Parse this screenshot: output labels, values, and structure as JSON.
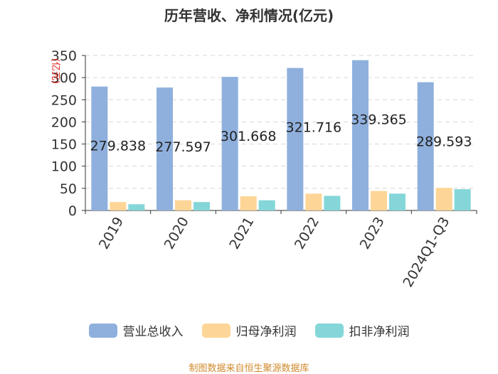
{
  "title": "历年营收、净利情况(亿元)",
  "source": "制图数据来自恒生聚源数据库",
  "colors": {
    "revenue": "#8fb0dd",
    "parent_profit": "#fdd596",
    "deducted_profit": "#84d6d8"
  },
  "chart_data": {
    "type": "bar",
    "title": "历年营收、净利情况(亿元)",
    "ylabel": "(亿元)",
    "ylim": [
      0,
      350
    ],
    "yticks": [
      0,
      50,
      100,
      150,
      200,
      250,
      300,
      350
    ],
    "categories": [
      "2019",
      "2020",
      "2021",
      "2022",
      "2023",
      "2024Q1-Q3"
    ],
    "grid": true,
    "legend_position": "bottom",
    "series": [
      {
        "name": "营业总收入",
        "key": "revenue",
        "values": [
          279.838,
          277.597,
          301.668,
          321.716,
          339.365,
          289.593
        ],
        "labels": [
          "279.838",
          "277.597",
          "301.668",
          "321.716",
          "339.365",
          "289.593"
        ]
      },
      {
        "name": "归母净利润",
        "key": "parent_profit",
        "values": [
          19,
          23,
          32,
          38,
          44,
          51
        ]
      },
      {
        "name": "扣非净利润",
        "key": "deducted_profit",
        "values": [
          14,
          19,
          23,
          33,
          38,
          48
        ]
      }
    ]
  }
}
